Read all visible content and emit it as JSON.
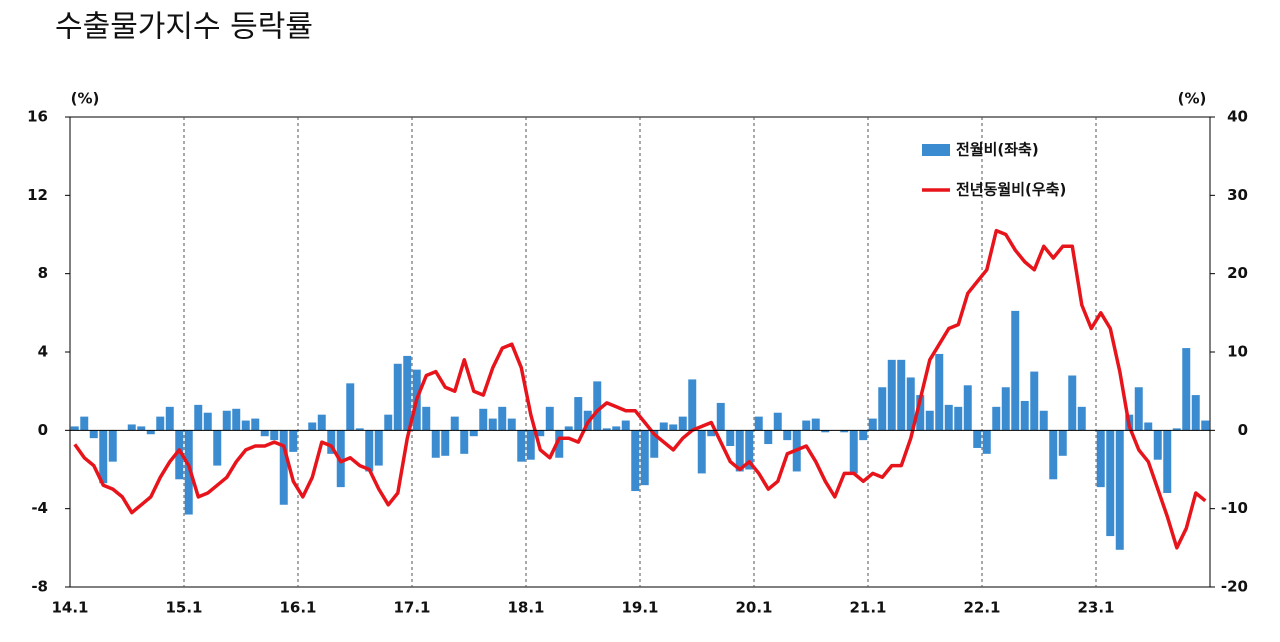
{
  "chart_data": {
    "type": "combo",
    "title": "수출물가지수 등락률",
    "y_label": "(%)",
    "y2_label": "(%)",
    "categories": [
      "14.1",
      null,
      null,
      null,
      null,
      null,
      null,
      null,
      null,
      null,
      null,
      null,
      "15.1",
      null,
      null,
      null,
      null,
      null,
      null,
      null,
      null,
      null,
      null,
      null,
      "16.1",
      null,
      null,
      null,
      null,
      null,
      null,
      null,
      null,
      null,
      null,
      null,
      "17.1",
      null,
      null,
      null,
      null,
      null,
      null,
      null,
      null,
      null,
      null,
      null,
      "18.1",
      null,
      null,
      null,
      null,
      null,
      null,
      null,
      null,
      null,
      null,
      null,
      "19.1",
      null,
      null,
      null,
      null,
      null,
      null,
      null,
      null,
      null,
      null,
      null,
      "20.1",
      null,
      null,
      null,
      null,
      null,
      null,
      null,
      null,
      null,
      null,
      null,
      "21.1",
      null,
      null,
      null,
      null,
      null,
      null,
      null,
      null,
      null,
      null,
      null,
      "22.1",
      null,
      null,
      null,
      null,
      null,
      null,
      null,
      null,
      null,
      null,
      null,
      "23.1",
      null,
      null,
      null,
      null,
      null,
      null,
      null,
      null,
      null,
      null,
      null
    ],
    "ylim": [
      -8,
      16
    ],
    "yticks": [
      -8,
      -4,
      0,
      4,
      8,
      12,
      16
    ],
    "y2lim": [
      -20,
      40
    ],
    "y2ticks": [
      -20,
      -10,
      0,
      10,
      20,
      30,
      40
    ],
    "xgrid": true,
    "legend": "top-right",
    "series": [
      {
        "name": "전월비(좌축)",
        "type": "bar",
        "color": "#3b8bd0",
        "axis": "y",
        "values": [
          0.2,
          0.7,
          -0.4,
          -2.7,
          -1.6,
          0.0,
          0.3,
          0.2,
          -0.2,
          0.7,
          1.2,
          -2.5,
          -4.3,
          1.3,
          0.9,
          -1.8,
          1.0,
          1.1,
          0.5,
          0.6,
          -0.3,
          -0.5,
          -3.8,
          -1.1,
          0.0,
          0.4,
          0.8,
          -1.2,
          -2.9,
          2.4,
          0.1,
          -2.1,
          -1.8,
          0.8,
          3.4,
          3.8,
          3.1,
          1.2,
          -1.4,
          -1.3,
          0.7,
          -1.2,
          -0.3,
          1.1,
          0.6,
          1.2,
          0.6,
          -1.6,
          -1.5,
          -0.3,
          1.2,
          -1.4,
          0.2,
          1.7,
          1.0,
          2.5,
          0.1,
          0.2,
          0.5,
          -3.1,
          -2.8,
          -1.4,
          0.4,
          0.3,
          0.7,
          2.6,
          -2.2,
          -0.3,
          1.4,
          -0.8,
          -2.1,
          -2.0,
          0.7,
          -0.7,
          0.9,
          -0.5,
          -2.1,
          0.5,
          0.6,
          -0.1,
          0.0,
          -0.1,
          -2.2,
          -0.5,
          0.6,
          2.2,
          3.6,
          3.6,
          2.7,
          1.8,
          1.0,
          3.9,
          1.3,
          1.2,
          2.3,
          -0.9,
          -1.2,
          1.2,
          2.2,
          6.1,
          1.5,
          3.0,
          1.0,
          -2.5,
          -1.3,
          2.8,
          1.2,
          0.0,
          -2.9,
          -5.4,
          -6.1,
          0.8,
          2.2,
          0.4,
          -1.5,
          -3.2,
          0.1,
          4.2,
          1.8,
          0.5
        ]
      },
      {
        "name": "전년동월비(우축)",
        "type": "line",
        "color": "#e8141b",
        "axis": "y2",
        "values": [
          -1.8,
          -3.5,
          -4.5,
          -7,
          -7.5,
          -8.5,
          -10.5,
          -9.5,
          -8.5,
          -6,
          -4,
          -2.5,
          -4.5,
          -8.5,
          -8,
          -7,
          -6,
          -4,
          -2.5,
          -2,
          -2,
          -1.5,
          -2,
          -6.5,
          -8.5,
          -6,
          -1.5,
          -2,
          -4,
          -3.5,
          -4.5,
          -5,
          -7.5,
          -9.5,
          -8,
          -1,
          4,
          7,
          7.5,
          5.5,
          5,
          9,
          5,
          4.5,
          8,
          10.5,
          11,
          8,
          2,
          -2.5,
          -3.5,
          -1,
          -1,
          -1.5,
          1,
          2.5,
          3.5,
          3,
          2.5,
          2.5,
          1,
          -0.5,
          -1.5,
          -2.5,
          -1,
          0,
          0.5,
          1,
          -1.5,
          -4,
          -5,
          -4,
          -5.5,
          -7.5,
          -6.5,
          -3,
          -2.5,
          -2,
          -4,
          -6.5,
          -8.5,
          -5.5,
          -5.5,
          -6.5,
          -5.5,
          -6,
          -4.5,
          -4.5,
          -1,
          4,
          9,
          11,
          13,
          13.5,
          17.5,
          19,
          20.5,
          25.5,
          25,
          23,
          21.5,
          20.5,
          23.5,
          22,
          23.5,
          23.5,
          16,
          13,
          15,
          13,
          7.5,
          0.5,
          -2.5,
          -4,
          -7.5,
          -11,
          -15,
          -12.5,
          -8,
          -9
        ]
      }
    ]
  }
}
